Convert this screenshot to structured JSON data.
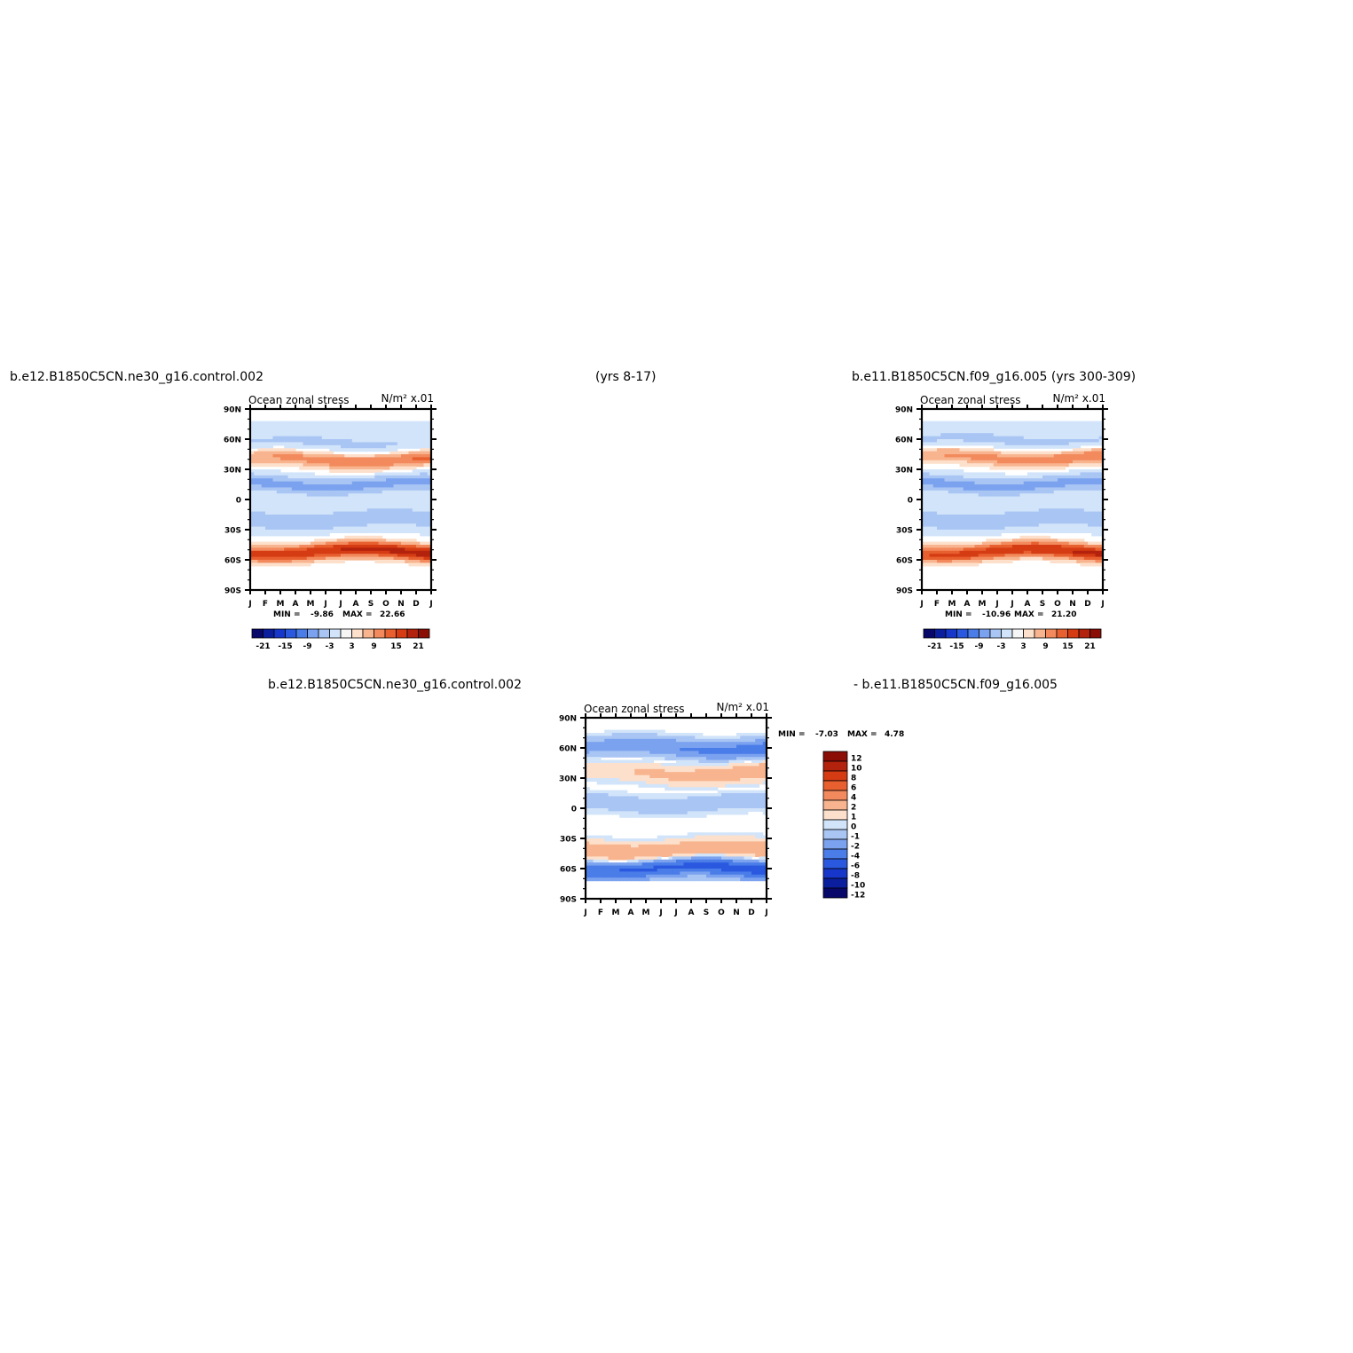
{
  "header": {
    "case1": "b.e12.B1850C5CN.ne30_g16.control.002",
    "years1": "(yrs 8-17)",
    "case2": "b.e11.B1850C5CN.f09_g16.005 (yrs 300-309)",
    "diff_case1": "b.e12.B1850C5CN.ne30_g16.control.002",
    "diff_case2": "- b.e11.B1850C5CN.f09_g16.005"
  },
  "colors": {
    "abs_levels": [
      "#08086b",
      "#0b1f9e",
      "#1637c9",
      "#2a59e0",
      "#4a7de8",
      "#7ba2ef",
      "#a9c5f4",
      "#d2e4f9",
      "#f6f6f6",
      "#fde0cc",
      "#f8b48e",
      "#f28a5d",
      "#e8602f",
      "#d53c14",
      "#b3220c",
      "#8a0d06"
    ],
    "diff_levels": [
      "#08086b",
      "#0b1f9e",
      "#1637c9",
      "#2a59e0",
      "#4a7de8",
      "#7ba2ef",
      "#a9c5f4",
      "#d2e4f9",
      "#fde0cc",
      "#f8b48e",
      "#f28a5d",
      "#e8602f",
      "#d53c14",
      "#b3220c",
      "#8a0d06"
    ]
  },
  "chart_data": [
    {
      "type": "heatmap",
      "title": "Ocean zonal stress",
      "units": "N/m² x.01",
      "x_ticks": [
        "J",
        "F",
        "M",
        "A",
        "M",
        "J",
        "J",
        "A",
        "S",
        "O",
        "N",
        "D",
        "J"
      ],
      "y_ticks": [
        "90N",
        "60N",
        "30N",
        "0",
        "30S",
        "60S",
        "90S"
      ],
      "min_label": "MIN =",
      "min_value": "-9.86",
      "max_label": "MAX =",
      "max_value": "22.66",
      "colorbar_labels": [
        "-21",
        "-15",
        "-9",
        "-3",
        "3",
        "9",
        "15",
        "21"
      ],
      "features": [
        {
          "lat": 55,
          "amp_start": -4,
          "amp_end": -4
        },
        {
          "lat": 40,
          "amp_start": 9,
          "amp_end": 13
        },
        {
          "lat": 15,
          "amp_start": -7,
          "amp_end": -7
        },
        {
          "lat": -20,
          "amp_start": -6,
          "amp_end": -6
        },
        {
          "lat": -52,
          "amp_start": 16,
          "amp_end": 20
        }
      ]
    },
    {
      "type": "heatmap",
      "title": "Ocean zonal stress",
      "units": "N/m² x.01",
      "x_ticks": [
        "J",
        "F",
        "M",
        "A",
        "M",
        "J",
        "J",
        "A",
        "S",
        "O",
        "N",
        "D",
        "J"
      ],
      "y_ticks": [
        "90N",
        "60N",
        "30N",
        "0",
        "30S",
        "60S",
        "90S"
      ],
      "min_label": "MIN =",
      "min_value": "-10.96",
      "max_label": "MAX =",
      "max_value": "21.20",
      "colorbar_labels": [
        "-21",
        "-15",
        "-9",
        "-3",
        "3",
        "9",
        "15",
        "21"
      ],
      "features": [
        {
          "lat": 58,
          "amp_start": -4,
          "amp_end": -4
        },
        {
          "lat": 42,
          "amp_start": 9,
          "amp_end": 12
        },
        {
          "lat": 15,
          "amp_start": -7,
          "amp_end": -7
        },
        {
          "lat": -20,
          "amp_start": -6,
          "amp_end": -6
        },
        {
          "lat": -52,
          "amp_start": 15,
          "amp_end": 19
        }
      ]
    },
    {
      "type": "heatmap",
      "title": "Ocean zonal stress",
      "units": "N/m² x.01",
      "x_ticks": [
        "J",
        "F",
        "M",
        "A",
        "M",
        "J",
        "J",
        "A",
        "S",
        "O",
        "N",
        "D",
        "J"
      ],
      "y_ticks": [
        "90N",
        "60N",
        "30N",
        "0",
        "30S",
        "60S",
        "90S"
      ],
      "min_label": "MIN =",
      "min_value": "-7.03",
      "max_label": "MAX =",
      "max_value": "4.78",
      "colorbar_labels": [
        "12",
        "10",
        "8",
        "6",
        "4",
        "2",
        "1",
        "0",
        "-1",
        "-2",
        "-4",
        "-6",
        "-8",
        "-10",
        "-12"
      ],
      "features": [
        {
          "lat": 60,
          "amp_start": -2,
          "amp_end": -4
        },
        {
          "lat": 35,
          "amp_start": 1,
          "amp_end": 3
        },
        {
          "lat": 5,
          "amp_start": -1,
          "amp_end": -1
        },
        {
          "lat": -42,
          "amp_start": 3,
          "amp_end": 3
        },
        {
          "lat": -60,
          "amp_start": -5,
          "amp_end": -6
        }
      ]
    }
  ]
}
